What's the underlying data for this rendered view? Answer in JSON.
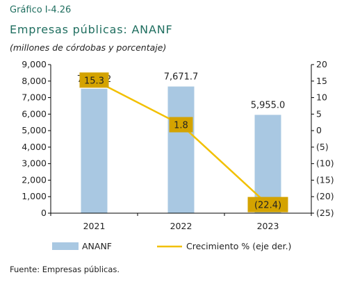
{
  "header": {
    "label": "Gráfico I-4.26",
    "title": "Empresas públicas: ANANF",
    "subtitle": "(millones de córdobas y porcentaje)"
  },
  "footer": {
    "source": "Fuente: Empresas públicas."
  },
  "colors": {
    "bar": "#a9c8e2",
    "line": "#f2c000",
    "label_box": "#d4a300",
    "text": "#222222",
    "title": "#1f6e5f"
  },
  "chart_data": {
    "type": "bar",
    "categories": [
      "2021",
      "2022",
      "2023"
    ],
    "series": [
      {
        "name": "ANANF",
        "type": "bar",
        "axis": "left",
        "values": [
          7537.2,
          7671.7,
          5955.0
        ]
      },
      {
        "name": "Crecimiento % (eje der.)",
        "type": "line",
        "axis": "right",
        "values": [
          15.3,
          1.8,
          -22.4
        ]
      }
    ],
    "bar_labels": [
      "7,537.2",
      "7,671.7",
      "5,955.0"
    ],
    "line_labels": [
      "15.3",
      "1.8",
      "(22.4)"
    ],
    "y_left": {
      "min": 0,
      "max": 9000,
      "ticks": [
        0,
        1000,
        2000,
        3000,
        4000,
        5000,
        6000,
        7000,
        8000,
        9000
      ],
      "tick_labels": [
        "0",
        "1,000",
        "2,000",
        "3,000",
        "4,000",
        "5,000",
        "6,000",
        "7,000",
        "8,000",
        "9,000"
      ]
    },
    "y_right": {
      "min": -25,
      "max": 20,
      "ticks": [
        20,
        15,
        10,
        5,
        0,
        -5,
        -10,
        -15,
        -20,
        -25
      ],
      "tick_labels": [
        "20",
        "15",
        "10",
        "5",
        "0",
        "(5)",
        "(10)",
        "(15)",
        "(20)",
        "(25)"
      ]
    },
    "legend": {
      "position": "bottom",
      "items": [
        "ANANF",
        "Crecimiento % (eje der.)"
      ]
    },
    "grid": false
  }
}
